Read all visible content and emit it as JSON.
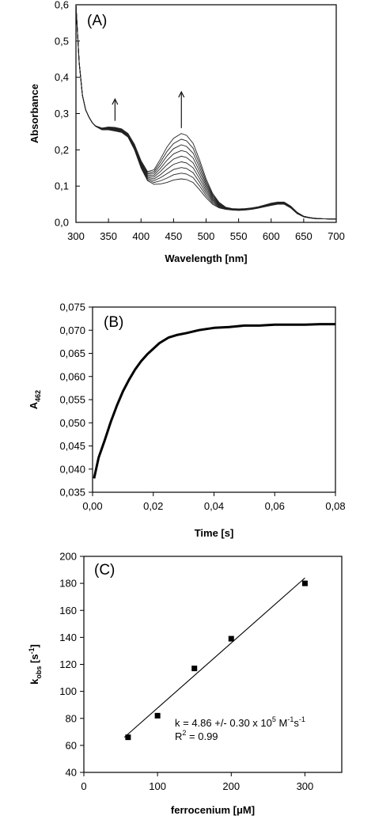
{
  "chart_data": [
    {
      "panel_label": "(A)",
      "type": "line",
      "xlabel": "Wavelength [nm]",
      "ylabel": "Absorbance",
      "xlim": [
        300,
        700
      ],
      "ylim": [
        0.0,
        0.6
      ],
      "xticks": [
        300,
        350,
        400,
        450,
        500,
        550,
        600,
        650,
        700
      ],
      "yticks": [
        0.0,
        0.1,
        0.2,
        0.3,
        0.4,
        0.5,
        0.6
      ],
      "xtick_labels": [
        "300",
        "350",
        "400",
        "450",
        "500",
        "550",
        "600",
        "650",
        "700"
      ],
      "ytick_labels": [
        "0,0",
        "0,1",
        "0,2",
        "0,3",
        "0,4",
        "0,5",
        "0,6"
      ],
      "grid": false,
      "annotations": [
        {
          "type": "arrow-up",
          "x": 360,
          "y_from": 0.28,
          "y_to": 0.34
        },
        {
          "type": "arrow-up",
          "x": 462,
          "y_from": 0.26,
          "y_to": 0.36
        }
      ],
      "series_template": {
        "x": [
          300,
          305,
          310,
          315,
          320,
          325,
          330,
          340,
          350,
          360,
          370,
          380,
          390,
          400,
          410,
          420,
          430,
          440,
          450,
          462,
          470,
          480,
          490,
          500,
          510,
          520,
          530,
          540,
          550,
          560,
          570,
          580,
          590,
          600,
          610,
          620,
          630,
          640,
          650,
          660,
          670,
          680,
          690,
          700
        ],
        "y_base": [
          0.6,
          0.44,
          0.35,
          0.31,
          0.29,
          0.275,
          0.265,
          0.255,
          0.255,
          0.252,
          0.248,
          0.235,
          0.2,
          0.15,
          0.115,
          0.105,
          0.106,
          0.11,
          0.117,
          0.12,
          0.118,
          0.11,
          0.09,
          0.068,
          0.05,
          0.04,
          0.036,
          0.034,
          0.033,
          0.034,
          0.036,
          0.039,
          0.043,
          0.047,
          0.05,
          0.05,
          0.04,
          0.024,
          0.015,
          0.012,
          0.01,
          0.01,
          0.009,
          0.009
        ],
        "y_max": [
          0.6,
          0.44,
          0.35,
          0.31,
          0.29,
          0.275,
          0.266,
          0.26,
          0.263,
          0.262,
          0.258,
          0.245,
          0.215,
          0.17,
          0.14,
          0.145,
          0.175,
          0.208,
          0.232,
          0.245,
          0.24,
          0.218,
          0.172,
          0.12,
          0.08,
          0.055,
          0.042,
          0.038,
          0.037,
          0.038,
          0.04,
          0.043,
          0.048,
          0.053,
          0.056,
          0.056,
          0.045,
          0.028,
          0.017,
          0.013,
          0.011,
          0.01,
          0.01,
          0.01
        ],
        "n_traces": 9
      }
    },
    {
      "panel_label": "(B)",
      "type": "line",
      "xlabel": "Time [s]",
      "ylabel": "A",
      "ylabel_sub": "462",
      "xlim": [
        0.0,
        0.08
      ],
      "ylim": [
        0.035,
        0.075
      ],
      "xticks": [
        0.0,
        0.02,
        0.04,
        0.06,
        0.08
      ],
      "yticks": [
        0.035,
        0.04,
        0.045,
        0.05,
        0.055,
        0.06,
        0.065,
        0.07,
        0.075
      ],
      "xtick_labels": [
        "0,00",
        "0,02",
        "0,04",
        "0,06",
        "0,08"
      ],
      "ytick_labels": [
        "0,035",
        "0,040",
        "0,045",
        "0,050",
        "0,055",
        "0,060",
        "0,065",
        "0,070",
        "0,075"
      ],
      "grid": false,
      "x": [
        0.0005,
        0.002,
        0.004,
        0.006,
        0.008,
        0.01,
        0.012,
        0.014,
        0.016,
        0.018,
        0.02,
        0.022,
        0.025,
        0.028,
        0.031,
        0.035,
        0.04,
        0.045,
        0.05,
        0.055,
        0.06,
        0.065,
        0.07,
        0.075,
        0.08
      ],
      "y": [
        0.038,
        0.0425,
        0.0462,
        0.0502,
        0.0537,
        0.0568,
        0.0593,
        0.0615,
        0.0633,
        0.0648,
        0.066,
        0.0672,
        0.0684,
        0.069,
        0.0694,
        0.07,
        0.0705,
        0.0707,
        0.071,
        0.071,
        0.0712,
        0.0712,
        0.0712,
        0.0713,
        0.0713
      ]
    },
    {
      "panel_label": "(C)",
      "type": "scatter",
      "xlabel": "ferrocenium [μM]",
      "ylabel": "k",
      "ylabel_sub": "obs",
      "ylabel_suffix": " [s",
      "ylabel_sup": "-1",
      "ylabel_end": "]",
      "xlim": [
        0,
        350
      ],
      "ylim": [
        40,
        200
      ],
      "xticks": [
        0,
        100,
        200,
        300
      ],
      "yticks": [
        40,
        60,
        80,
        100,
        120,
        140,
        160,
        180,
        200
      ],
      "xtick_labels": [
        "0",
        "100",
        "200",
        "300"
      ],
      "ytick_labels": [
        "40",
        "60",
        "80",
        "100",
        "120",
        "140",
        "160",
        "180",
        "200"
      ],
      "grid": false,
      "x": [
        60,
        100,
        150,
        200,
        300
      ],
      "y": [
        66,
        82,
        117,
        139,
        180
      ],
      "fit": {
        "x": [
          55,
          300
        ],
        "y": [
          66,
          184
        ]
      },
      "equation": {
        "k_text": "k = 4.86 +/- 0.30 x 10",
        "k_sup1": "5",
        "k_unit": " M",
        "k_sup2": "-1",
        "k_tail": "s",
        "k_sup3": "-1",
        "r_text": "R",
        "r_sup": "2",
        "r_tail": " = 0.99"
      }
    }
  ]
}
